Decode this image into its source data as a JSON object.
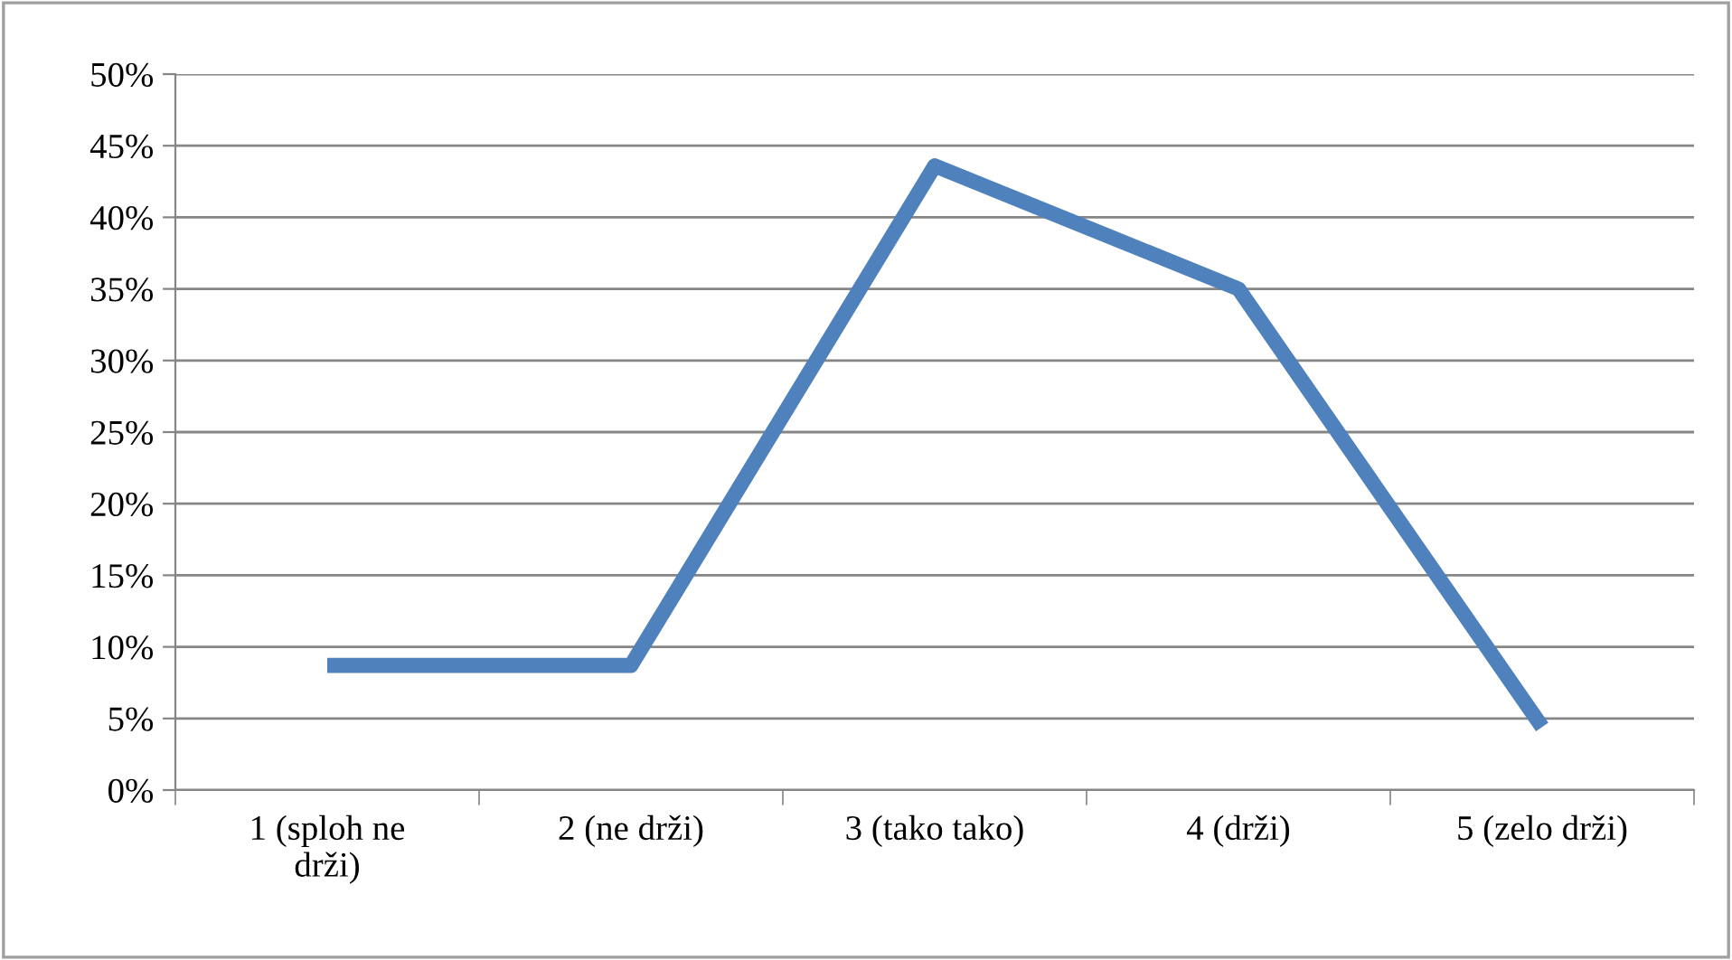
{
  "chart_data": {
    "type": "line",
    "categories": [
      "1 (sploh ne\ndrži)",
      "2 (ne drži)",
      "3 (tako tako)",
      "4 (drži)",
      "5 (zelo drži)"
    ],
    "series": [
      {
        "color": "#4f81bd",
        "values": [
          8.7,
          8.7,
          43.6,
          35.0,
          4.4
        ]
      }
    ],
    "ylim": [
      0,
      50
    ],
    "yticks": [
      {
        "value": 0,
        "label": "0%"
      },
      {
        "value": 5,
        "label": "5%"
      },
      {
        "value": 10,
        "label": "10%"
      },
      {
        "value": 15,
        "label": "15%"
      },
      {
        "value": 20,
        "label": "20%"
      },
      {
        "value": 25,
        "label": "25%"
      },
      {
        "value": 30,
        "label": "30%"
      },
      {
        "value": 35,
        "label": "35%"
      },
      {
        "value": 40,
        "label": "40%"
      },
      {
        "value": 45,
        "label": "45%"
      },
      {
        "value": 50,
        "label": "50%"
      }
    ],
    "grid": "y",
    "marker": "none",
    "line_style": "solid"
  }
}
